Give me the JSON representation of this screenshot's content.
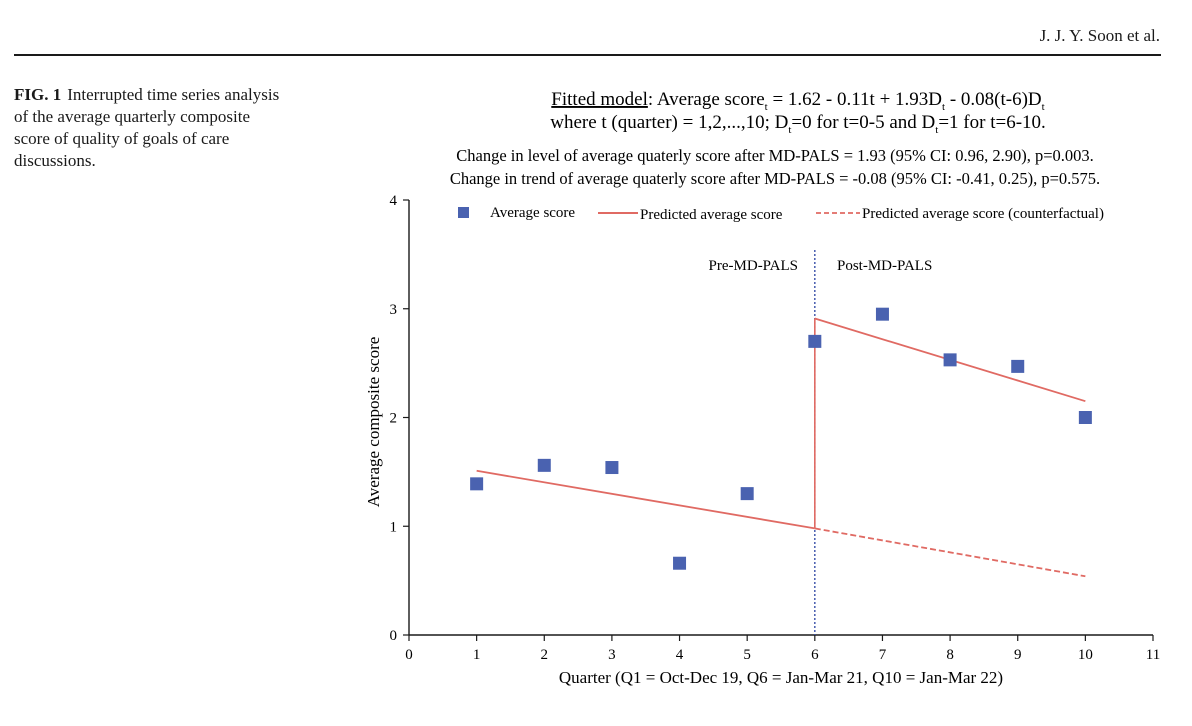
{
  "page": {
    "running_head": "J. J. Y. Soon et al.",
    "figure_label": "FIG. 1",
    "caption": "Interrupted time series analysis of the average quarterly composite score of quality of goals of care discussions."
  },
  "model": {
    "label": "Fitted model",
    "line1_prefix": ": Average score",
    "sub_t": "t",
    "line1_mid": " = 1.62 - 0.11t + 1.93D",
    "line1_mid2": " - 0.08(t-6)D",
    "line2_a": "where t (quarter) = 1,2,...,10; D",
    "line2_b": "=0 for t=0-5 and D",
    "line2_c": "=1 for t=6-10.",
    "change_level": "Change in level of average quaterly score after MD-PALS = 1.93 (95% CI: 0.96, 2.90), p=0.003.",
    "change_trend": "Change in trend of average quaterly score after MD-PALS = -0.08 (95% CI: -0.41, 0.25), p=0.575."
  },
  "colors": {
    "marker": "#4a62b0",
    "fit_line": "#e06a63",
    "intervention_line": "#3950a8",
    "axis": "#1a1a1a"
  },
  "chart_data": {
    "type": "scatter",
    "xlabel": "Quarter (Q1 = Oct-Dec 19, Q6 = Jan-Mar 21, Q10 = Jan-Mar 22)",
    "ylabel": "Average composite score",
    "xlim": [
      0,
      11
    ],
    "ylim": [
      0,
      4
    ],
    "xticks": [
      0,
      1,
      2,
      3,
      4,
      5,
      6,
      7,
      8,
      9,
      10,
      11
    ],
    "yticks": [
      0,
      1,
      2,
      3,
      4
    ],
    "intervention_x": 6,
    "phase_labels": {
      "pre": "Pre-MD-PALS",
      "post": "Post-MD-PALS"
    },
    "legend": {
      "observed": "Average score",
      "predicted": "Predicted average score",
      "counterfactual": "Predicted average score (counterfactual)"
    },
    "series": [
      {
        "name": "Average score",
        "kind": "markers",
        "x": [
          1,
          2,
          3,
          4,
          5,
          6,
          7,
          8,
          9,
          10
        ],
        "y": [
          1.39,
          1.56,
          1.54,
          0.66,
          1.3,
          2.7,
          2.95,
          2.53,
          2.47,
          2.0
        ]
      },
      {
        "name": "Predicted average score (pre)",
        "kind": "line",
        "x": [
          1,
          6
        ],
        "y": [
          1.51,
          0.98
        ]
      },
      {
        "name": "Predicted average score (post)",
        "kind": "line",
        "x": [
          6,
          10
        ],
        "y": [
          2.91,
          2.15
        ]
      },
      {
        "name": "Predicted average score (counterfactual)",
        "kind": "dashed-line",
        "x": [
          6,
          10
        ],
        "y": [
          0.98,
          0.54
        ]
      }
    ]
  }
}
